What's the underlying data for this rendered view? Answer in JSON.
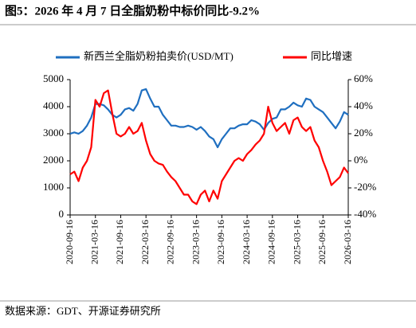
{
  "chart_data": {
    "type": "line",
    "title": "图5：2026 年 4 月 7 日全脂奶粉中标价同比-9.2%",
    "source": "数据来源：GDT、开源证券研究所",
    "categories": [
      "2020-09-16",
      null,
      null,
      null,
      null,
      null,
      "2021-03-16",
      null,
      null,
      null,
      null,
      null,
      "2021-09-16",
      null,
      null,
      null,
      null,
      null,
      "2022-03-16",
      null,
      null,
      null,
      null,
      null,
      "2022-09-16",
      null,
      null,
      null,
      null,
      null,
      "2023-03-16",
      null,
      null,
      null,
      null,
      null,
      "2023-09-16",
      null,
      null,
      null,
      null,
      null,
      "2024-03-16",
      null,
      null,
      null,
      null,
      null,
      "2024-09-16",
      null,
      null,
      null,
      null,
      null,
      "2025-03-16",
      null,
      null,
      null,
      null,
      null,
      "2025-09-16",
      null,
      null,
      null,
      null,
      null,
      "2026-03-16"
    ],
    "series": [
      {
        "name": "新西兰全脂奶粉拍卖价(USD/MT)",
        "color": "#1f6fc0",
        "axis": "y",
        "values": [
          3000,
          3050,
          3000,
          3100,
          3300,
          3600,
          4100,
          4100,
          4050,
          3900,
          3700,
          3600,
          3700,
          3900,
          3950,
          3850,
          4100,
          4600,
          4650,
          4300,
          4000,
          4000,
          3700,
          3500,
          3300,
          3300,
          3250,
          3250,
          3300,
          3250,
          3150,
          3250,
          3100,
          2900,
          2800,
          2500,
          2800,
          3000,
          3200,
          3200,
          3300,
          3350,
          3350,
          3500,
          3450,
          3350,
          3150,
          3400,
          3550,
          3600,
          3900,
          3900,
          4000,
          4150,
          4050,
          4000,
          4300,
          4250,
          4000,
          3900,
          3800,
          3600,
          3400,
          3200,
          3450,
          3800,
          3700
        ]
      },
      {
        "name": "同比增速",
        "color": "#ff0000",
        "axis": "y2",
        "values": [
          -10,
          -8,
          -15,
          -5,
          0,
          10,
          45,
          40,
          50,
          52,
          35,
          20,
          18,
          20,
          25,
          20,
          22,
          28,
          15,
          5,
          0,
          -2,
          -3,
          -8,
          -12,
          -15,
          -20,
          -25,
          -25,
          -30,
          -32,
          -25,
          -22,
          -30,
          -22,
          -28,
          -15,
          -10,
          -5,
          0,
          2,
          0,
          5,
          8,
          12,
          15,
          20,
          40,
          28,
          22,
          25,
          28,
          20,
          30,
          32,
          25,
          22,
          25,
          15,
          10,
          0,
          -8,
          -18,
          -15,
          -12,
          -5,
          -9.2
        ]
      }
    ],
    "ylim": [
      0,
      5000
    ],
    "yticks": [
      0,
      1000,
      2000,
      3000,
      4000,
      5000
    ],
    "y2lim": [
      -40,
      60
    ],
    "y2ticks": [
      {
        "value": -40,
        "label": "-40%"
      },
      {
        "value": -20,
        "label": "-20%"
      },
      {
        "value": 0,
        "label": "0%"
      },
      {
        "value": 20,
        "label": "20%"
      },
      {
        "value": 40,
        "label": "40%"
      },
      {
        "value": 60,
        "label": "60%"
      }
    ]
  }
}
